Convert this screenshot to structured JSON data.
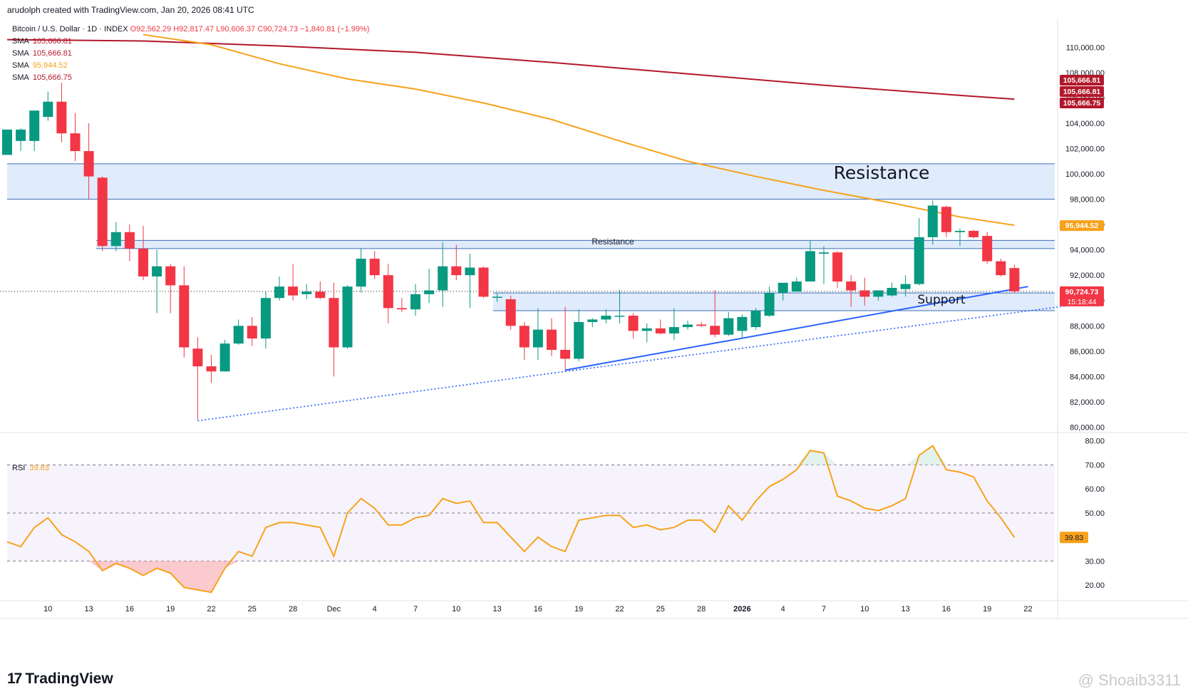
{
  "header": {
    "credit": "arudolph created with TradingView.com, Jan 20, 2026 08:41 UTC",
    "symbol": "Bitcoin / U.S. Dollar · 1D · INDEX",
    "ohlc": "O92,562.29 H92,817.47 L90,606.37 C90,724.73 −1,840.81 (−1.99%)"
  },
  "legend": [
    {
      "label": "SMA",
      "value": "105,666.81",
      "color": "#b2182b"
    },
    {
      "label": "SMA",
      "value": "105,666.81",
      "color": "#b2182b"
    },
    {
      "label": "SMA",
      "value": "95,944.52",
      "color": "#f7a21b"
    },
    {
      "label": "SMA",
      "value": "105,666.75",
      "color": "#b2182b"
    }
  ],
  "rsi_legend": {
    "label": "RSI",
    "value": "39.83"
  },
  "branding": {
    "logo": "TradingView",
    "watermark": "@ Shoaib3311"
  },
  "colors": {
    "up": "#089981",
    "down": "#f23645",
    "sma_long": "#b2182b",
    "sma_mid": "#f7a21b",
    "trendline": "#2962ff",
    "zone_fill": "#dbe8fb",
    "zone_line": "#3d6fb6",
    "rsi": "#f7a21b"
  },
  "chart_data": [
    {
      "type": "candlestick",
      "title": "Bitcoin / U.S. Dollar · 1D · INDEX",
      "ylim": [
        79800,
        111200
      ],
      "y_ticks": [
        80000,
        82000,
        84000,
        86000,
        88000,
        90000,
        92000,
        94000,
        96000,
        98000,
        100000,
        102000,
        104000,
        106000,
        108000,
        110000
      ],
      "y_tick_labels": [
        "80,000.00",
        "82,000.00",
        "84,000.00",
        "86,000.00",
        "88,000.00",
        "90,000.00",
        "92,000.00",
        "94,000.00",
        "96,000.00",
        "98,000.00",
        "100,000.00",
        "102,000.00",
        "104,000.00",
        "106,000.00",
        "108,000.00",
        "110,000.00"
      ],
      "x_ticks": [
        {
          "i": 3,
          "label": "10"
        },
        {
          "i": 6,
          "label": "13"
        },
        {
          "i": 9,
          "label": "16"
        },
        {
          "i": 12,
          "label": "19"
        },
        {
          "i": 15,
          "label": "22"
        },
        {
          "i": 18,
          "label": "25"
        },
        {
          "i": 21,
          "label": "28"
        },
        {
          "i": 24,
          "label": "Dec"
        },
        {
          "i": 27,
          "label": "4"
        },
        {
          "i": 30,
          "label": "7"
        },
        {
          "i": 33,
          "label": "10"
        },
        {
          "i": 36,
          "label": "13"
        },
        {
          "i": 39,
          "label": "16"
        },
        {
          "i": 42,
          "label": "19"
        },
        {
          "i": 45,
          "label": "22"
        },
        {
          "i": 48,
          "label": "25"
        },
        {
          "i": 51,
          "label": "28"
        },
        {
          "i": 54,
          "label": "2026"
        },
        {
          "i": 57,
          "label": "4"
        },
        {
          "i": 60,
          "label": "7"
        },
        {
          "i": 63,
          "label": "10"
        },
        {
          "i": 66,
          "label": "13"
        },
        {
          "i": 69,
          "label": "16"
        },
        {
          "i": 72,
          "label": "19"
        },
        {
          "i": 75,
          "label": "22"
        }
      ],
      "candles": [
        {
          "o": 101500,
          "h": 103500,
          "l": 101500,
          "c": 103500
        },
        {
          "o": 102600,
          "h": 103600,
          "l": 101800,
          "c": 103500
        },
        {
          "o": 102600,
          "h": 105000,
          "l": 101800,
          "c": 105000
        },
        {
          "o": 104500,
          "h": 106500,
          "l": 104200,
          "c": 105700
        },
        {
          "o": 105700,
          "h": 107200,
          "l": 102500,
          "c": 103200
        },
        {
          "o": 103200,
          "h": 104800,
          "l": 101000,
          "c": 101800
        },
        {
          "o": 101800,
          "h": 104000,
          "l": 98000,
          "c": 99800
        },
        {
          "o": 99700,
          "h": 99800,
          "l": 93900,
          "c": 94300
        },
        {
          "o": 94300,
          "h": 96200,
          "l": 93900,
          "c": 95400
        },
        {
          "o": 95400,
          "h": 96000,
          "l": 93100,
          "c": 94100
        },
        {
          "o": 94100,
          "h": 95900,
          "l": 91600,
          "c": 91900
        },
        {
          "o": 91900,
          "h": 94000,
          "l": 89000,
          "c": 92700
        },
        {
          "o": 92700,
          "h": 92900,
          "l": 89000,
          "c": 91200
        },
        {
          "o": 91200,
          "h": 92700,
          "l": 85500,
          "c": 86300
        },
        {
          "o": 86200,
          "h": 87100,
          "l": 80600,
          "c": 84800
        },
        {
          "o": 84800,
          "h": 85700,
          "l": 83500,
          "c": 84400
        },
        {
          "o": 84400,
          "h": 86900,
          "l": 84400,
          "c": 86600
        },
        {
          "o": 86600,
          "h": 88500,
          "l": 86500,
          "c": 88000
        },
        {
          "o": 88000,
          "h": 88700,
          "l": 86400,
          "c": 87000
        },
        {
          "o": 87000,
          "h": 90700,
          "l": 86200,
          "c": 90200
        },
        {
          "o": 90200,
          "h": 91900,
          "l": 90000,
          "c": 91100
        },
        {
          "o": 91100,
          "h": 92900,
          "l": 90000,
          "c": 90400
        },
        {
          "o": 90500,
          "h": 91300,
          "l": 90100,
          "c": 90700
        },
        {
          "o": 90700,
          "h": 91500,
          "l": 90100,
          "c": 90200
        },
        {
          "o": 90200,
          "h": 91400,
          "l": 84000,
          "c": 86300
        },
        {
          "o": 86300,
          "h": 91200,
          "l": 86200,
          "c": 91100
        },
        {
          "o": 91100,
          "h": 94100,
          "l": 90600,
          "c": 93300
        },
        {
          "o": 93300,
          "h": 93900,
          "l": 91700,
          "c": 92000
        },
        {
          "o": 92000,
          "h": 92900,
          "l": 88200,
          "c": 89400
        },
        {
          "o": 89400,
          "h": 90200,
          "l": 89100,
          "c": 89300
        },
        {
          "o": 89300,
          "h": 91300,
          "l": 88800,
          "c": 90500
        },
        {
          "o": 90500,
          "h": 92500,
          "l": 89800,
          "c": 90800
        },
        {
          "o": 90800,
          "h": 94600,
          "l": 89500,
          "c": 92700
        },
        {
          "o": 92700,
          "h": 94400,
          "l": 91600,
          "c": 92000
        },
        {
          "o": 92000,
          "h": 93700,
          "l": 89400,
          "c": 92600
        },
        {
          "o": 92600,
          "h": 92700,
          "l": 90200,
          "c": 90300
        },
        {
          "o": 90300,
          "h": 90600,
          "l": 89900,
          "c": 90300
        },
        {
          "o": 90100,
          "h": 90400,
          "l": 87700,
          "c": 88000
        },
        {
          "o": 88000,
          "h": 88300,
          "l": 85300,
          "c": 86300
        },
        {
          "o": 86300,
          "h": 89400,
          "l": 85300,
          "c": 87700
        },
        {
          "o": 87700,
          "h": 88600,
          "l": 85600,
          "c": 86100
        },
        {
          "o": 86100,
          "h": 89500,
          "l": 84500,
          "c": 85400
        },
        {
          "o": 85400,
          "h": 89300,
          "l": 85200,
          "c": 88300
        },
        {
          "o": 88300,
          "h": 88600,
          "l": 87900,
          "c": 88500
        },
        {
          "o": 88500,
          "h": 89300,
          "l": 88200,
          "c": 88800
        },
        {
          "o": 88800,
          "h": 90800,
          "l": 88200,
          "c": 88800
        },
        {
          "o": 88800,
          "h": 89000,
          "l": 87000,
          "c": 87600
        },
        {
          "o": 87600,
          "h": 88200,
          "l": 86700,
          "c": 87800
        },
        {
          "o": 87800,
          "h": 88500,
          "l": 87300,
          "c": 87400
        },
        {
          "o": 87400,
          "h": 89400,
          "l": 86900,
          "c": 87900
        },
        {
          "o": 87900,
          "h": 88400,
          "l": 87700,
          "c": 88100
        },
        {
          "o": 88100,
          "h": 88300,
          "l": 87900,
          "c": 88000
        },
        {
          "o": 88000,
          "h": 90800,
          "l": 87100,
          "c": 87300
        },
        {
          "o": 87300,
          "h": 89100,
          "l": 87200,
          "c": 88600
        },
        {
          "o": 87600,
          "h": 88900,
          "l": 87000,
          "c": 88700
        },
        {
          "o": 87900,
          "h": 89400,
          "l": 87700,
          "c": 89200
        },
        {
          "o": 88800,
          "h": 91100,
          "l": 88700,
          "c": 90600
        },
        {
          "o": 90600,
          "h": 91100,
          "l": 90000,
          "c": 91400
        },
        {
          "o": 90700,
          "h": 91800,
          "l": 90700,
          "c": 91500
        },
        {
          "o": 91500,
          "h": 94700,
          "l": 91500,
          "c": 93900
        },
        {
          "o": 93700,
          "h": 94300,
          "l": 91300,
          "c": 93800
        },
        {
          "o": 93800,
          "h": 93900,
          "l": 91000,
          "c": 91500
        },
        {
          "o": 91500,
          "h": 92000,
          "l": 89500,
          "c": 90800
        },
        {
          "o": 90800,
          "h": 91800,
          "l": 89600,
          "c": 90300
        },
        {
          "o": 90300,
          "h": 90800,
          "l": 90000,
          "c": 90800
        },
        {
          "o": 90400,
          "h": 91400,
          "l": 90300,
          "c": 91000
        },
        {
          "o": 90900,
          "h": 92000,
          "l": 90300,
          "c": 91300
        },
        {
          "o": 91300,
          "h": 96500,
          "l": 91200,
          "c": 95000
        },
        {
          "o": 95000,
          "h": 97900,
          "l": 94400,
          "c": 97500
        },
        {
          "o": 97400,
          "h": 97500,
          "l": 95000,
          "c": 95400
        },
        {
          "o": 95400,
          "h": 95700,
          "l": 94300,
          "c": 95500
        },
        {
          "o": 95500,
          "h": 95600,
          "l": 94900,
          "c": 95000
        },
        {
          "o": 95100,
          "h": 95400,
          "l": 92900,
          "c": 93100
        },
        {
          "o": 93100,
          "h": 93300,
          "l": 91900,
          "c": 92000
        },
        {
          "o": 92562.29,
          "h": 92817.47,
          "l": 90606.37,
          "c": 90724.73
        }
      ],
      "series": [
        {
          "name": "SMA",
          "x": [
            0,
            10,
            20,
            30,
            40,
            50,
            60,
            70,
            74
          ],
          "y": [
            110600,
            110500,
            110100,
            109600,
            108800,
            107900,
            107000,
            106200,
            105900
          ]
        },
        {
          "name": "SMA",
          "x": [
            10,
            15,
            20,
            25,
            30,
            35,
            40,
            45,
            50,
            55,
            60,
            65,
            70,
            74
          ],
          "y": [
            111000,
            110200,
            108700,
            107500,
            106700,
            105600,
            104300,
            102600,
            101000,
            99800,
            98700,
            97700,
            96600,
            95944.52
          ]
        }
      ],
      "price_labels": [
        {
          "text": "105,666.81",
          "bg": "#b2182b"
        },
        {
          "text": "105,666.81",
          "bg": "#b2182b"
        },
        {
          "text": "105,666.75",
          "bg": "#b2182b"
        },
        {
          "text": "95,944.52",
          "bg": "#f7a21b"
        },
        {
          "text": "90,724.73",
          "sub": "15:18:44",
          "bg": "#f23645"
        }
      ],
      "zones": [
        {
          "label": "Resistance",
          "from": 98000,
          "to": 100800
        },
        {
          "label": "Resistance",
          "from": 94100,
          "to": 94750
        },
        {
          "label": "Support",
          "from": 89200,
          "to": 90600
        }
      ],
      "annotations": [
        "Resistance",
        "Resistance",
        "Support"
      ],
      "last_price": 90724.73,
      "trendlines": [
        {
          "style": "solid",
          "x": [
            41,
            75
          ],
          "y": [
            84500,
            91100
          ]
        },
        {
          "style": "dotted",
          "x": [
            14,
            41
          ],
          "y": [
            80500,
            84400
          ]
        },
        {
          "style": "dotted",
          "x": [
            41,
            78
          ],
          "y": [
            84400,
            89600
          ]
        }
      ]
    },
    {
      "type": "line",
      "title": "RSI",
      "ylim": [
        15,
        82
      ],
      "y_ticks": [
        20,
        30,
        50,
        60,
        70,
        80
      ],
      "y_tick_labels": [
        "20.00",
        "30.00",
        "50.00",
        "60.00",
        "70.00",
        "80.00"
      ],
      "levels": [
        70,
        50,
        30
      ],
      "values": [
        38,
        36,
        44,
        48,
        41,
        38,
        34,
        26,
        29,
        27,
        24,
        27,
        25,
        19,
        18,
        17,
        27,
        34,
        32,
        44,
        46,
        46,
        45,
        44,
        32,
        50,
        56,
        52,
        45,
        45,
        48,
        49,
        56,
        54,
        55,
        46,
        46,
        40,
        34,
        40,
        36,
        34,
        47,
        48,
        49,
        49,
        44,
        45,
        43,
        44,
        47,
        47,
        42,
        53,
        47,
        55,
        61,
        64,
        68,
        76,
        75,
        57,
        55,
        52,
        51,
        53,
        56,
        74,
        78,
        68,
        67,
        65,
        55,
        48,
        39.83
      ]
    }
  ]
}
